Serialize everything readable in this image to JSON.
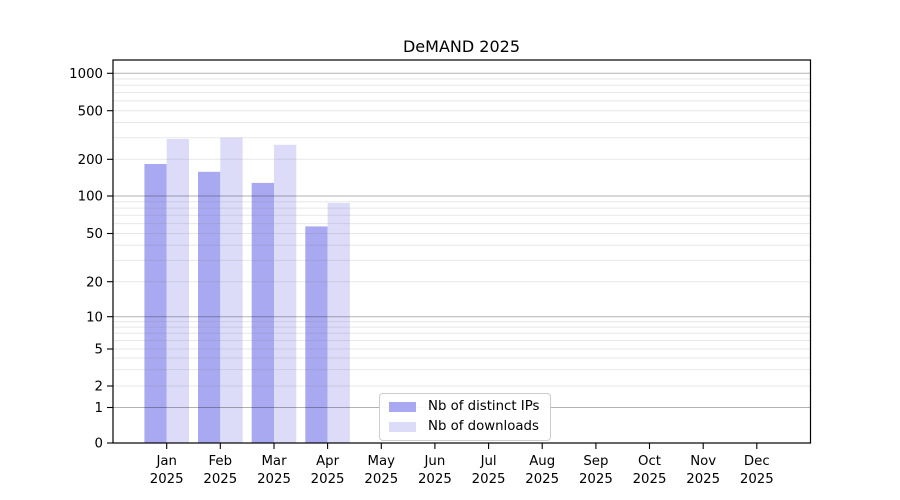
{
  "chart_data": {
    "type": "bar",
    "title": "DeMAND 2025",
    "xlabel": "",
    "ylabel": "",
    "x_axis": {
      "categories": [
        "Jan",
        "Feb",
        "Mar",
        "Apr",
        "May",
        "Jun",
        "Jul",
        "Aug",
        "Sep",
        "Oct",
        "Nov",
        "Dec"
      ],
      "year_label": "2025"
    },
    "y_axis": {
      "scale": "symlog",
      "ticks": [
        0,
        1,
        2,
        5,
        10,
        20,
        50,
        100,
        200,
        500,
        1000
      ],
      "range": [
        0,
        1100
      ]
    },
    "grid": {
      "enabled": true,
      "major_line_color": "#b2b2b2",
      "minor_line_color": "#e8e8e8"
    },
    "series": [
      {
        "name": "Nb of distinct IPs",
        "color": "#a9a9f1",
        "values": [
          183,
          158,
          128,
          57,
          null,
          null,
          null,
          null,
          null,
          null,
          null,
          null
        ]
      },
      {
        "name": "Nb of downloads",
        "color": "#dcdcf9",
        "values": [
          293,
          301,
          263,
          88,
          null,
          null,
          null,
          null,
          null,
          null,
          null,
          null
        ]
      }
    ],
    "legend": {
      "position": "lower-center-left",
      "items": [
        "Nb of distinct IPs",
        "Nb of downloads"
      ]
    }
  }
}
